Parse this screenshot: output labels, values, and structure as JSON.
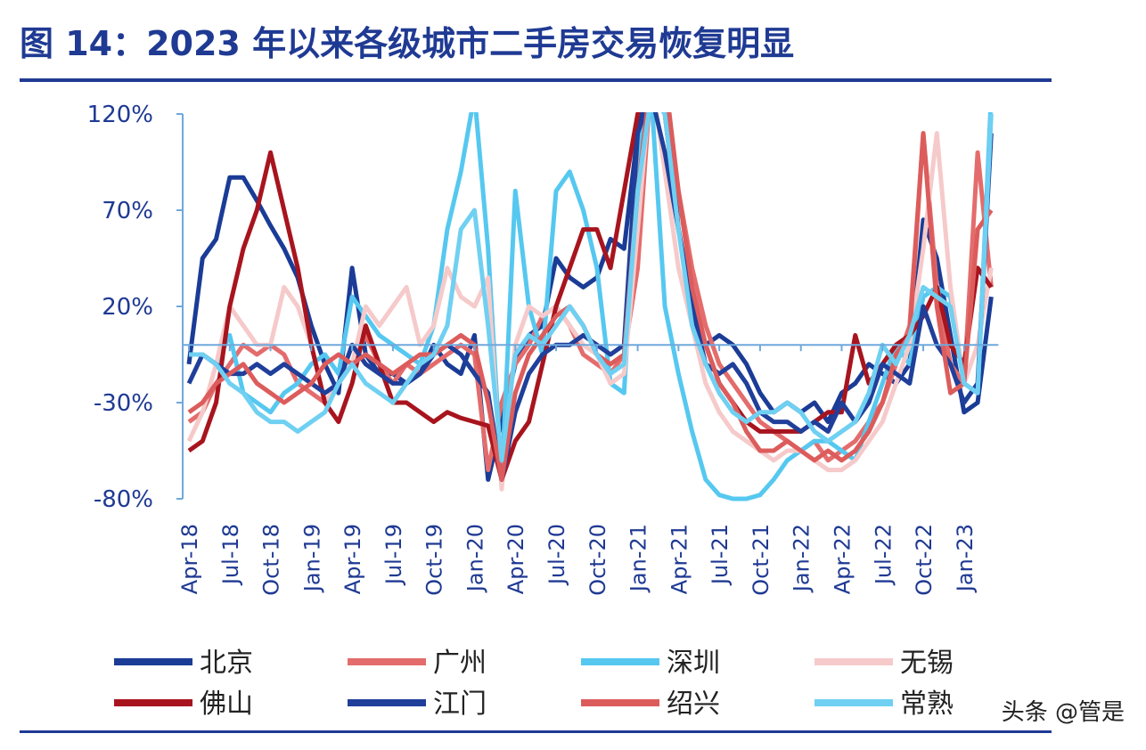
{
  "chart_data": {
    "type": "line",
    "title": "图 14：2023 年以来各级城市二手房交易恢复明显",
    "watermark": "头条 @管是",
    "categories": [
      "Apr-18",
      null,
      null,
      "Jul-18",
      null,
      null,
      "Oct-18",
      null,
      null,
      "Jan-19",
      null,
      null,
      "Apr-19",
      null,
      null,
      "Jul-19",
      null,
      null,
      "Oct-19",
      null,
      null,
      "Jan-20",
      null,
      null,
      "Apr-20",
      null,
      null,
      "Jul-20",
      null,
      null,
      "Oct-20",
      null,
      null,
      "Jan-21",
      null,
      null,
      "Apr-21",
      null,
      null,
      "Jul-21",
      null,
      null,
      "Oct-21",
      null,
      null,
      "Jan-22",
      null,
      null,
      "Apr-22",
      null,
      null,
      "Jul-22",
      null,
      null,
      "Oct-22",
      null,
      null,
      "Jan-23",
      null,
      null
    ],
    "ylim": [
      -80,
      120
    ],
    "yticks": [
      {
        "value": -80,
        "label": "-80%"
      },
      {
        "value": -30,
        "label": "-30%"
      },
      {
        "value": 20,
        "label": "20%"
      },
      {
        "value": 70,
        "label": "70%"
      },
      {
        "value": 120,
        "label": "120%"
      }
    ],
    "legend_columns": 4,
    "series": [
      {
        "name": "北京",
        "color": "#1a3c96",
        "values": [
          -10,
          45,
          55,
          87,
          87,
          75,
          62,
          50,
          35,
          10,
          -10,
          -25,
          40,
          -5,
          -15,
          -15,
          -20,
          -15,
          0,
          -10,
          -15,
          5,
          -70,
          -40,
          -10,
          5,
          10,
          45,
          35,
          30,
          35,
          55,
          50,
          110,
          140,
          140,
          60,
          20,
          0,
          5,
          0,
          -10,
          -25,
          -35,
          -30,
          -35,
          -30,
          -40,
          -25,
          -20,
          -10,
          -15,
          -20,
          -10,
          65,
          45,
          5,
          -35,
          -30,
          25
        ]
      },
      {
        "name": "广州",
        "color": "#e46c6c",
        "values": [
          -40,
          -35,
          -20,
          -10,
          0,
          -5,
          0,
          -5,
          -20,
          -25,
          -30,
          -20,
          -10,
          5,
          -10,
          -20,
          -10,
          -15,
          -10,
          -5,
          0,
          -5,
          -65,
          -30,
          -10,
          0,
          15,
          20,
          10,
          -5,
          -10,
          -15,
          -5,
          40,
          140,
          130,
          80,
          40,
          10,
          -10,
          -20,
          -30,
          -40,
          -45,
          -50,
          -55,
          -50,
          -60,
          -55,
          -50,
          -40,
          -30,
          -10,
          10,
          110,
          30,
          -10,
          -20,
          100,
          30
        ]
      },
      {
        "name": "深圳",
        "color": "#56c8f0",
        "values": [
          -5,
          -5,
          -10,
          5,
          -25,
          -30,
          -35,
          -25,
          -20,
          -10,
          -5,
          -15,
          25,
          15,
          5,
          0,
          -5,
          -10,
          10,
          60,
          90,
          130,
          50,
          -70,
          80,
          20,
          -5,
          80,
          90,
          70,
          40,
          -20,
          -25,
          100,
          130,
          20,
          -15,
          -45,
          -70,
          -78,
          -80,
          -80,
          -78,
          -70,
          -60,
          -55,
          -50,
          -50,
          -55,
          -60,
          -40,
          -20,
          0,
          -10,
          25,
          30,
          25,
          -20,
          -25,
          130
        ]
      },
      {
        "name": "无锡",
        "color": "#f6caca",
        "values": [
          -50,
          -35,
          -10,
          20,
          10,
          0,
          0,
          30,
          20,
          0,
          -30,
          -20,
          -10,
          20,
          10,
          20,
          30,
          0,
          10,
          40,
          25,
          20,
          35,
          -75,
          0,
          20,
          15,
          20,
          10,
          0,
          -5,
          -20,
          -15,
          60,
          140,
          90,
          40,
          10,
          -20,
          -35,
          -45,
          -50,
          -55,
          -60,
          -55,
          -55,
          -60,
          -65,
          -65,
          -60,
          -50,
          -40,
          -20,
          0,
          50,
          110,
          30,
          -20,
          0,
          40
        ]
      },
      {
        "name": "佛山",
        "color": "#a8141e",
        "values": [
          -55,
          -50,
          -30,
          20,
          50,
          70,
          100,
          70,
          40,
          0,
          -30,
          -40,
          -20,
          10,
          -10,
          -30,
          -30,
          -35,
          -40,
          -35,
          -38,
          -40,
          -42,
          -70,
          -50,
          -40,
          -10,
          20,
          40,
          60,
          60,
          40,
          80,
          120,
          140,
          120,
          60,
          20,
          0,
          -20,
          -30,
          -40,
          -45,
          -45,
          -45,
          -45,
          -40,
          -35,
          -35,
          5,
          -20,
          -10,
          0,
          5,
          15,
          30,
          0,
          -10,
          40,
          30
        ]
      },
      {
        "name": "江门",
        "color": "#203f9a",
        "values": [
          -20,
          -5,
          -10,
          -15,
          -15,
          -10,
          -15,
          -10,
          -15,
          -20,
          -25,
          -20,
          0,
          -10,
          -15,
          -20,
          -20,
          -15,
          -5,
          0,
          -5,
          -15,
          -25,
          -70,
          -35,
          -15,
          -5,
          0,
          0,
          5,
          0,
          -5,
          0,
          110,
          130,
          100,
          60,
          20,
          -10,
          -15,
          -10,
          -20,
          -35,
          -40,
          -40,
          -45,
          -40,
          -45,
          -30,
          -40,
          -30,
          -10,
          -15,
          -20,
          20,
          0,
          -10,
          -30,
          -20,
          110
        ]
      },
      {
        "name": "绍兴",
        "color": "#dc5c5c",
        "values": [
          -35,
          -30,
          -20,
          -15,
          -10,
          -20,
          -25,
          -30,
          -25,
          -20,
          -10,
          -5,
          -10,
          -5,
          -10,
          -15,
          -10,
          -5,
          -5,
          0,
          5,
          0,
          -30,
          -70,
          -25,
          -5,
          5,
          15,
          20,
          10,
          -5,
          -10,
          -5,
          80,
          140,
          140,
          80,
          30,
          0,
          -20,
          -30,
          -45,
          -55,
          -55,
          -50,
          -55,
          -60,
          -55,
          -60,
          -55,
          -45,
          -30,
          -5,
          5,
          110,
          20,
          -25,
          -20,
          60,
          70
        ]
      },
      {
        "name": "常熟",
        "color": "#6fd0f2",
        "values": [
          -5,
          -5,
          -10,
          -20,
          -25,
          -35,
          -40,
          -40,
          -45,
          -40,
          -35,
          -20,
          -10,
          -20,
          -25,
          -30,
          -20,
          -10,
          -5,
          10,
          60,
          70,
          10,
          -60,
          -5,
          5,
          0,
          10,
          20,
          10,
          -5,
          -15,
          -10,
          80,
          130,
          120,
          60,
          10,
          -10,
          -25,
          -35,
          -40,
          -35,
          -35,
          -30,
          -35,
          -45,
          -50,
          -45,
          -40,
          -25,
          0,
          -10,
          5,
          30,
          25,
          20,
          -20,
          -25,
          120
        ]
      }
    ]
  }
}
